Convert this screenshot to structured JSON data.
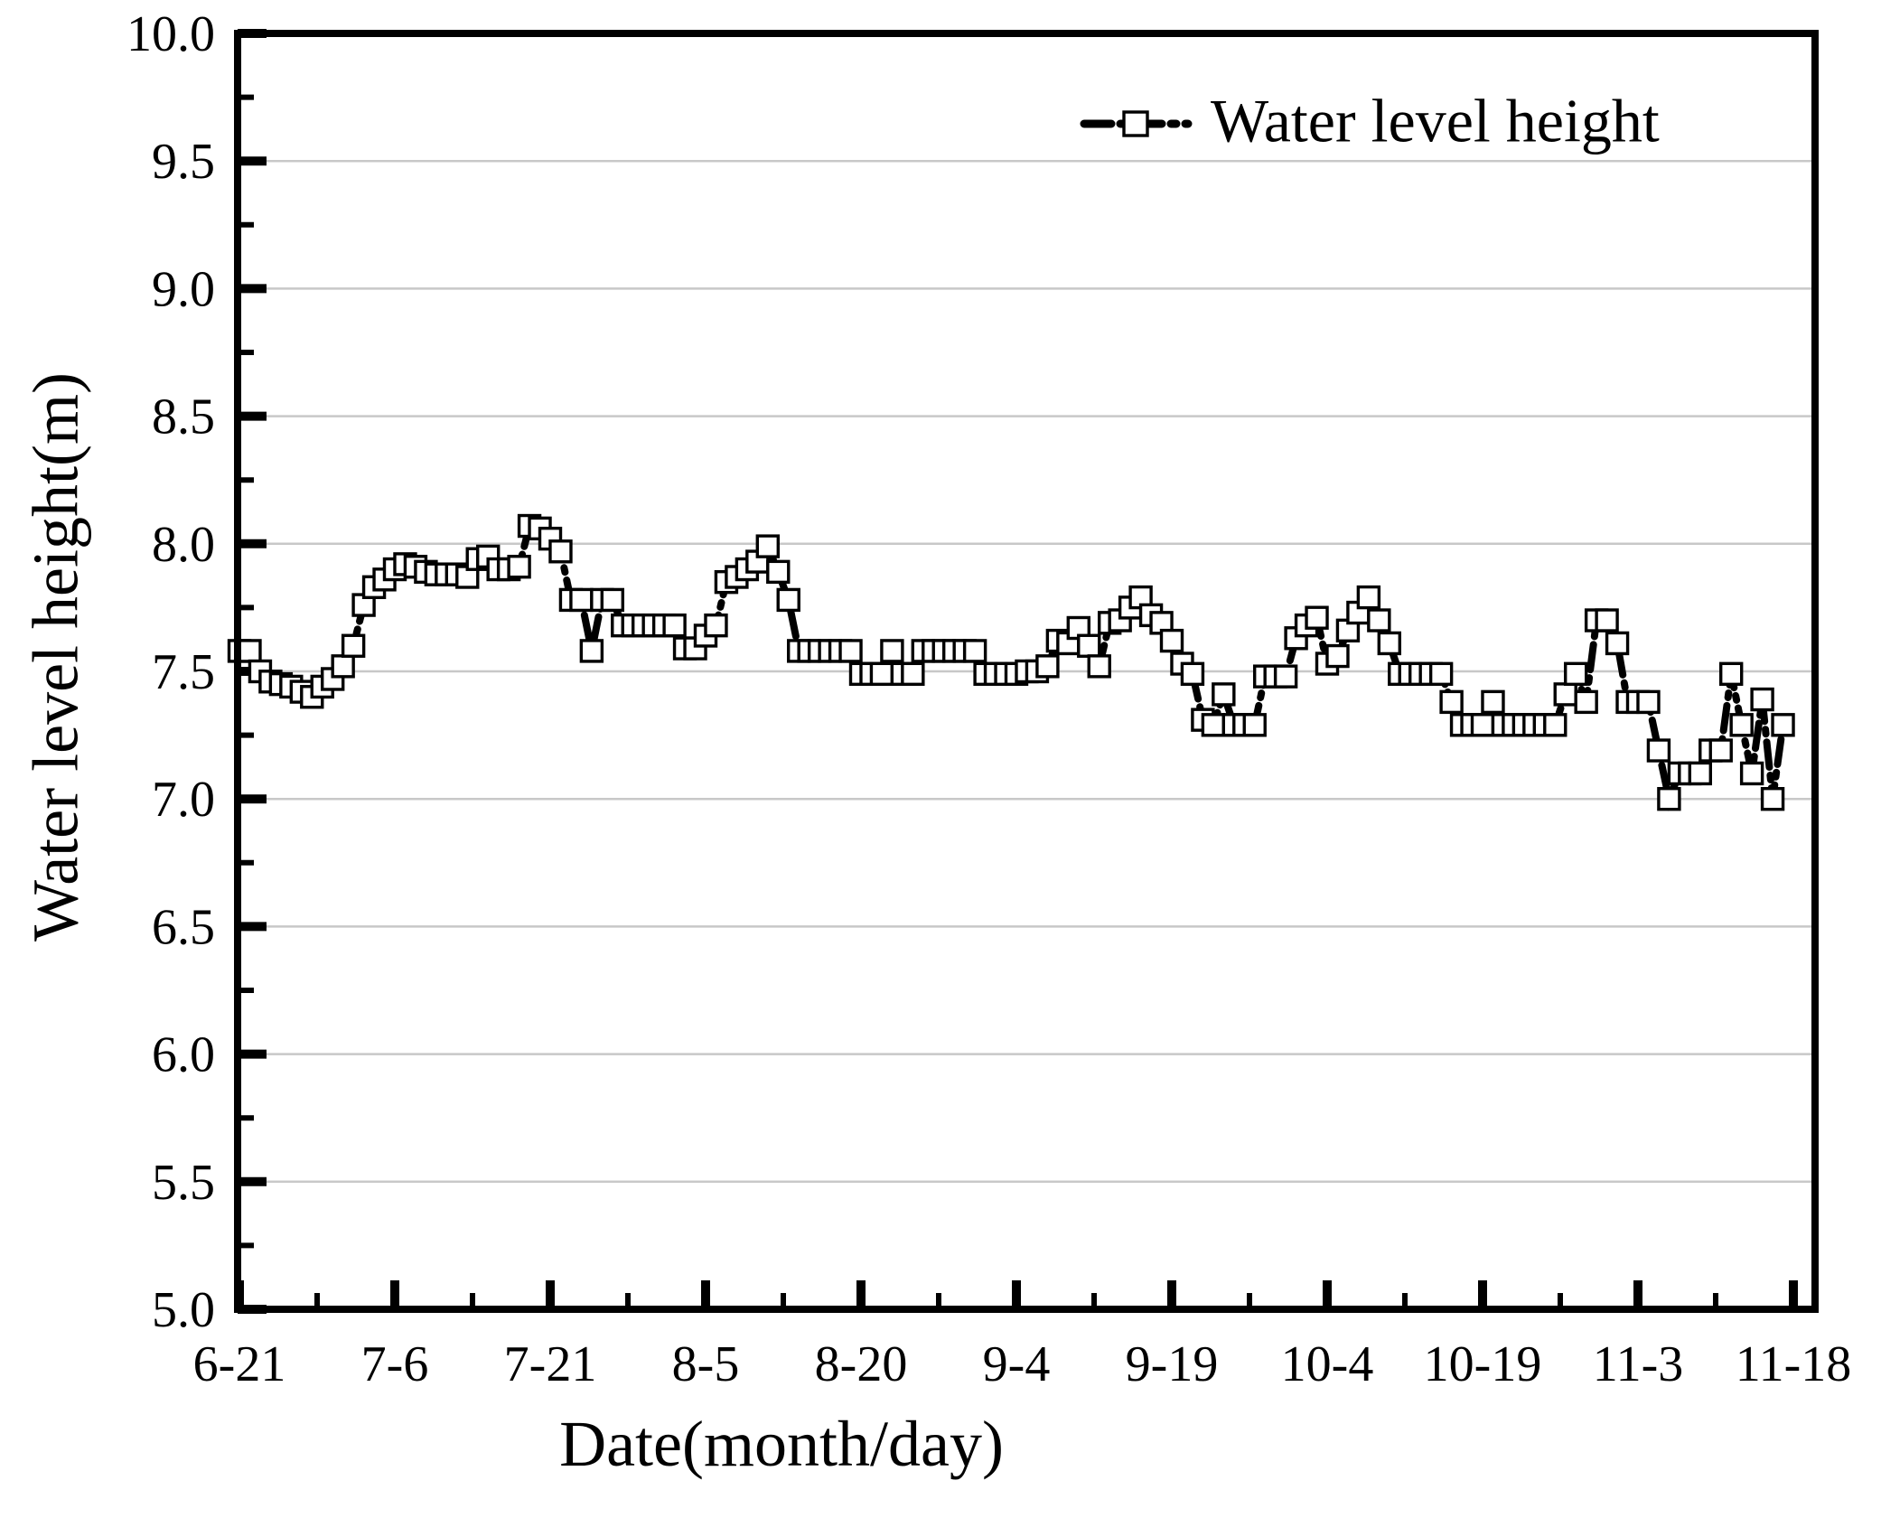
{
  "chart_data": {
    "type": "line",
    "title": "",
    "xlabel": "Date(month/day)",
    "ylabel": "Water level height(m)",
    "legend_label": "Water level height",
    "legend_position": "top-right",
    "grid": "horizontal",
    "ylim": [
      5.0,
      10.0
    ],
    "y_tick_step": 0.5,
    "y_minor_tick_step": 0.25,
    "y_tick_labels": [
      "10.0",
      "9.5",
      "9.0",
      "8.5",
      "8.0",
      "7.5",
      "7.0",
      "6.5",
      "6.0",
      "5.5",
      "5.0"
    ],
    "x_tick_labels": [
      "6-21",
      "7-6",
      "7-21",
      "8-5",
      "8-20",
      "9-4",
      "9-19",
      "10-4",
      "10-19",
      "11-3",
      "11-18"
    ],
    "x_days_per_major_tick": 15,
    "x_days_per_minor_tick": 7.5,
    "sample_interval": "daily",
    "line_style": "dash-dot",
    "marker": "open-square",
    "colors": {
      "line": "#000000",
      "marker_fill": "#ffffff",
      "marker_edge": "#000000",
      "grid": "#c8c8c8",
      "background": "#ffffff"
    },
    "series": [
      {
        "name": "Water level height",
        "start_date": "6-21",
        "values": [
          7.58,
          7.58,
          7.5,
          7.46,
          7.45,
          7.44,
          7.42,
          7.4,
          7.44,
          7.47,
          7.52,
          7.6,
          7.76,
          7.83,
          7.86,
          7.9,
          7.92,
          7.91,
          7.89,
          7.88,
          7.88,
          7.88,
          7.87,
          7.94,
          7.95,
          7.9,
          7.9,
          7.91,
          8.07,
          8.06,
          8.02,
          7.97,
          7.78,
          7.78,
          7.58,
          7.78,
          7.78,
          7.68,
          7.68,
          7.68,
          7.68,
          7.68,
          7.68,
          7.59,
          7.59,
          7.64,
          7.68,
          7.85,
          7.87,
          7.9,
          7.93,
          7.99,
          7.89,
          7.78,
          7.58,
          7.58,
          7.58,
          7.58,
          7.58,
          7.58,
          7.49,
          7.49,
          7.49,
          7.58,
          7.49,
          7.49,
          7.58,
          7.58,
          7.58,
          7.58,
          7.58,
          7.58,
          7.49,
          7.49,
          7.49,
          7.49,
          7.5,
          7.5,
          7.52,
          7.62,
          7.61,
          7.67,
          7.6,
          7.52,
          7.69,
          7.7,
          7.75,
          7.79,
          7.72,
          7.69,
          7.62,
          7.53,
          7.49,
          7.31,
          7.29,
          7.41,
          7.29,
          7.29,
          7.29,
          7.48,
          7.48,
          7.48,
          7.63,
          7.68,
          7.71,
          7.53,
          7.56,
          7.66,
          7.73,
          7.79,
          7.7,
          7.61,
          7.49,
          7.49,
          7.49,
          7.49,
          7.49,
          7.38,
          7.29,
          7.29,
          7.29,
          7.38,
          7.29,
          7.29,
          7.29,
          7.29,
          7.29,
          7.29,
          7.41,
          7.49,
          7.38,
          7.7,
          7.7,
          7.61,
          7.38,
          7.38,
          7.38,
          7.19,
          7.0,
          7.1,
          7.1,
          7.1,
          7.19,
          7.19,
          7.49,
          7.29,
          7.1,
          7.39,
          7.0,
          7.29
        ]
      }
    ]
  }
}
